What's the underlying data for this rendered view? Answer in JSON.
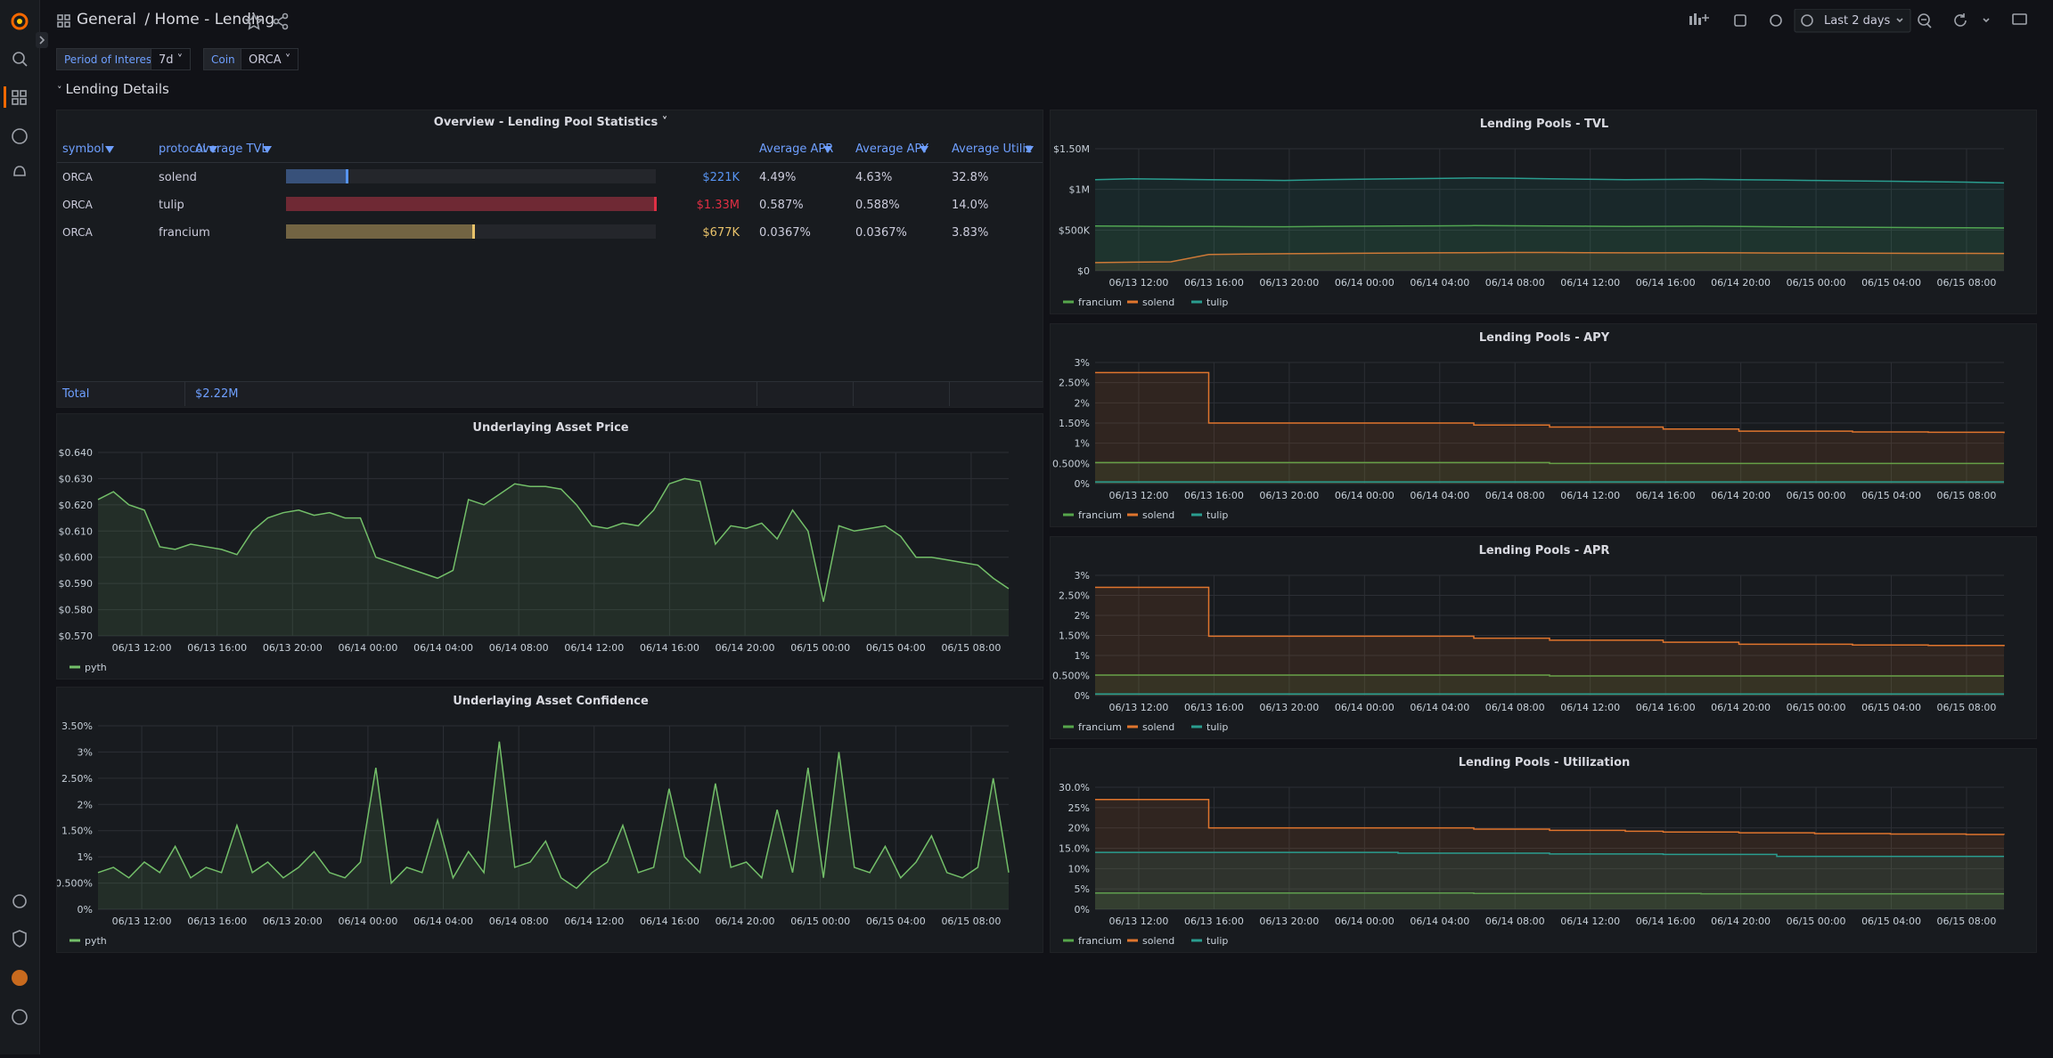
{
  "nav": {
    "folder": "General",
    "separator": "/",
    "dashboard": "Home - Lending",
    "time_range": "Last 2 days"
  },
  "variables": [
    {
      "label": "Period of Interest",
      "value": "7d"
    },
    {
      "label": "Coin",
      "value": "ORCA"
    }
  ],
  "row_title": "Lending Details",
  "table": {
    "title": "Overview - Lending Pool Statistics",
    "columns": [
      "symbol",
      "protocol",
      "Average TVL",
      "Average APR",
      "Average APY",
      "Average Utiliz"
    ],
    "rows": [
      {
        "symbol": "ORCA",
        "protocol": "solend",
        "tvl": 221000,
        "tvl_label": "$221K",
        "apr": "4.49%",
        "apy": "4.63%",
        "utilization": "32.8%",
        "color": "#5794f2"
      },
      {
        "symbol": "ORCA",
        "protocol": "tulip",
        "tvl": 1330000,
        "tvl_label": "$1.33M",
        "apr": "0.587%",
        "apy": "0.588%",
        "utilization": "14.0%",
        "color": "#e02f44"
      },
      {
        "symbol": "ORCA",
        "protocol": "francium",
        "tvl": 677000,
        "tvl_label": "$677K",
        "apr": "0.0367%",
        "apy": "0.0367%",
        "utilization": "3.83%",
        "color": "#e8c26a"
      }
    ],
    "footer": {
      "label": "Total",
      "tvl_total": "$2.22M"
    }
  },
  "chart_data": [
    {
      "type": "line",
      "title": "Underlaying Asset Price",
      "interpolation": "linear",
      "fill_opacity": 0.12,
      "legend": "bottom",
      "grid": true,
      "xticks": [
        "06/13 12:00",
        "06/13 16:00",
        "06/13 20:00",
        "06/14 00:00",
        "06/14 04:00",
        "06/14 08:00",
        "06/14 12:00",
        "06/14 16:00",
        "06/14 20:00",
        "06/15 00:00",
        "06/15 04:00",
        "06/15 08:00"
      ],
      "ylim": [
        0.57,
        0.64
      ],
      "yticks": [
        {
          "value": 0.57,
          "label": "$0.570"
        },
        {
          "value": 0.58,
          "label": "$0.580"
        },
        {
          "value": 0.59,
          "label": "$0.590"
        },
        {
          "value": 0.6,
          "label": "$0.600"
        },
        {
          "value": 0.61,
          "label": "$0.610"
        },
        {
          "value": 0.62,
          "label": "$0.620"
        },
        {
          "value": 0.63,
          "label": "$0.630"
        },
        {
          "value": 0.64,
          "label": "$0.640"
        }
      ],
      "series": [
        {
          "name": "pyth",
          "color": "#73bf69",
          "values": [
            0.622,
            0.625,
            0.62,
            0.618,
            0.604,
            0.603,
            0.605,
            0.604,
            0.603,
            0.601,
            0.61,
            0.615,
            0.617,
            0.618,
            0.616,
            0.617,
            0.615,
            0.615,
            0.6,
            0.598,
            0.596,
            0.594,
            0.592,
            0.595,
            0.622,
            0.62,
            0.624,
            0.628,
            0.627,
            0.627,
            0.626,
            0.62,
            0.612,
            0.611,
            0.613,
            0.612,
            0.618,
            0.628,
            0.63,
            0.629,
            0.605,
            0.612,
            0.611,
            0.613,
            0.607,
            0.618,
            0.61,
            0.583,
            0.612,
            0.61,
            0.611,
            0.612,
            0.608,
            0.6,
            0.6,
            0.599,
            0.598,
            0.597,
            0.592,
            0.588
          ]
        }
      ]
    },
    {
      "type": "line",
      "title": "Underlaying Asset Confidence",
      "interpolation": "linear",
      "fill_opacity": 0.12,
      "legend": "bottom",
      "grid": true,
      "xticks": [
        "06/13 12:00",
        "06/13 16:00",
        "06/13 20:00",
        "06/14 00:00",
        "06/14 04:00",
        "06/14 08:00",
        "06/14 12:00",
        "06/14 16:00",
        "06/14 20:00",
        "06/15 00:00",
        "06/15 04:00",
        "06/15 08:00"
      ],
      "ylim": [
        0,
        3.5
      ],
      "yticks": [
        {
          "value": 0,
          "label": "0%"
        },
        {
          "value": 0.5,
          "label": "0.500%"
        },
        {
          "value": 1,
          "label": "1%"
        },
        {
          "value": 1.5,
          "label": "1.50%"
        },
        {
          "value": 2,
          "label": "2%"
        },
        {
          "value": 2.5,
          "label": "2.50%"
        },
        {
          "value": 3,
          "label": "3%"
        },
        {
          "value": 3.5,
          "label": "3.50%"
        }
      ],
      "series": [
        {
          "name": "pyth",
          "color": "#73bf69",
          "values": [
            0.7,
            0.8,
            0.6,
            0.9,
            0.7,
            1.2,
            0.6,
            0.8,
            0.7,
            1.6,
            0.7,
            0.9,
            0.6,
            0.8,
            1.1,
            0.7,
            0.6,
            0.9,
            2.7,
            0.5,
            0.8,
            0.7,
            1.7,
            0.6,
            1.1,
            0.7,
            3.2,
            0.8,
            0.9,
            1.3,
            0.6,
            0.4,
            0.7,
            0.9,
            1.6,
            0.7,
            0.8,
            2.3,
            1.0,
            0.7,
            2.4,
            0.8,
            0.9,
            0.6,
            1.9,
            0.7,
            2.7,
            0.6,
            3.0,
            0.8,
            0.7,
            1.2,
            0.6,
            0.9,
            1.4,
            0.7,
            0.6,
            0.8,
            2.5,
            0.7
          ]
        }
      ]
    },
    {
      "type": "line",
      "title": "Lending Pools - TVL",
      "interpolation": "linear",
      "fill_opacity": 0.1,
      "legend": "bottom",
      "grid": true,
      "xticks": [
        "06/13 12:00",
        "06/13 16:00",
        "06/13 20:00",
        "06/14 00:00",
        "06/14 04:00",
        "06/14 08:00",
        "06/14 12:00",
        "06/14 16:00",
        "06/14 20:00",
        "06/15 00:00",
        "06/15 04:00",
        "06/15 08:00"
      ],
      "ylim": [
        0,
        1500000
      ],
      "yticks": [
        {
          "value": 0,
          "label": "$0"
        },
        {
          "value": 500000,
          "label": "$500K"
        },
        {
          "value": 1000000,
          "label": "$1M"
        },
        {
          "value": 1500000,
          "label": "$1.50M"
        }
      ],
      "series": [
        {
          "name": "francium",
          "color": "#56a64b",
          "values": [
            550000,
            548000,
            545000,
            545000,
            542000,
            540000,
            545000,
            548000,
            550000,
            552000,
            555000,
            553000,
            550000,
            548000,
            545000,
            546000,
            548000,
            545000,
            540000,
            538000,
            535000,
            532000,
            530000,
            528000,
            525000
          ]
        },
        {
          "name": "solend",
          "color": "#e0752d",
          "values": [
            100000,
            105000,
            110000,
            200000,
            205000,
            210000,
            212000,
            215000,
            218000,
            220000,
            222000,
            225000,
            224000,
            222000,
            220000,
            221000,
            222000,
            220000,
            218000,
            217000,
            216000,
            215000,
            214000,
            213000,
            212000
          ]
        },
        {
          "name": "tulip",
          "color": "#2a9d8f",
          "values": [
            1120000,
            1130000,
            1125000,
            1120000,
            1115000,
            1110000,
            1120000,
            1125000,
            1130000,
            1135000,
            1140000,
            1138000,
            1130000,
            1125000,
            1120000,
            1122000,
            1125000,
            1120000,
            1115000,
            1110000,
            1105000,
            1100000,
            1095000,
            1090000,
            1080000
          ]
        }
      ]
    },
    {
      "type": "line",
      "title": "Lending Pools - APY",
      "interpolation": "stepAfter",
      "fill_opacity": 0.12,
      "legend": "bottom",
      "grid": true,
      "xticks": [
        "06/13 12:00",
        "06/13 16:00",
        "06/13 20:00",
        "06/14 00:00",
        "06/14 04:00",
        "06/14 08:00",
        "06/14 12:00",
        "06/14 16:00",
        "06/14 20:00",
        "06/15 00:00",
        "06/15 04:00",
        "06/15 08:00"
      ],
      "ylim": [
        0,
        3
      ],
      "yticks": [
        {
          "value": 0,
          "label": "0%"
        },
        {
          "value": 0.5,
          "label": "0.500%"
        },
        {
          "value": 1,
          "label": "1%"
        },
        {
          "value": 1.5,
          "label": "1.50%"
        },
        {
          "value": 2,
          "label": "2%"
        },
        {
          "value": 2.5,
          "label": "2.50%"
        },
        {
          "value": 3,
          "label": "3%"
        }
      ],
      "series": [
        {
          "name": "francium",
          "color": "#56a64b",
          "values": [
            0.52,
            0.52,
            0.52,
            0.52,
            0.52,
            0.52,
            0.52,
            0.52,
            0.52,
            0.52,
            0.52,
            0.52,
            0.5,
            0.5,
            0.5,
            0.5,
            0.5,
            0.5,
            0.5,
            0.5,
            0.5,
            0.5,
            0.5,
            0.5,
            0.5
          ]
        },
        {
          "name": "solend",
          "color": "#e0752d",
          "values": [
            2.75,
            2.75,
            2.75,
            1.5,
            1.5,
            1.5,
            1.5,
            1.5,
            1.5,
            1.5,
            1.45,
            1.45,
            1.4,
            1.4,
            1.4,
            1.35,
            1.35,
            1.3,
            1.3,
            1.3,
            1.28,
            1.28,
            1.27,
            1.27,
            1.25
          ]
        },
        {
          "name": "tulip",
          "color": "#2a9d8f",
          "values": [
            0.04,
            0.04,
            0.04,
            0.04,
            0.04,
            0.04,
            0.04,
            0.04,
            0.04,
            0.04,
            0.04,
            0.04,
            0.04,
            0.04,
            0.04,
            0.04,
            0.04,
            0.04,
            0.04,
            0.04,
            0.04,
            0.04,
            0.04,
            0.04,
            0.04
          ]
        }
      ]
    },
    {
      "type": "line",
      "title": "Lending Pools - APR",
      "interpolation": "stepAfter",
      "fill_opacity": 0.12,
      "legend": "bottom",
      "grid": true,
      "xticks": [
        "06/13 12:00",
        "06/13 16:00",
        "06/13 20:00",
        "06/14 00:00",
        "06/14 04:00",
        "06/14 08:00",
        "06/14 12:00",
        "06/14 16:00",
        "06/14 20:00",
        "06/15 00:00",
        "06/15 04:00",
        "06/15 08:00"
      ],
      "ylim": [
        0,
        3
      ],
      "yticks": [
        {
          "value": 0,
          "label": "0%"
        },
        {
          "value": 0.5,
          "label": "0.500%"
        },
        {
          "value": 1,
          "label": "1%"
        },
        {
          "value": 1.5,
          "label": "1.50%"
        },
        {
          "value": 2,
          "label": "2%"
        },
        {
          "value": 2.5,
          "label": "2.50%"
        },
        {
          "value": 3,
          "label": "3%"
        }
      ],
      "series": [
        {
          "name": "francium",
          "color": "#56a64b",
          "values": [
            0.51,
            0.51,
            0.51,
            0.51,
            0.51,
            0.51,
            0.51,
            0.51,
            0.51,
            0.51,
            0.51,
            0.51,
            0.49,
            0.49,
            0.49,
            0.49,
            0.49,
            0.49,
            0.49,
            0.49,
            0.49,
            0.49,
            0.49,
            0.49,
            0.49
          ]
        },
        {
          "name": "solend",
          "color": "#e0752d",
          "values": [
            2.7,
            2.7,
            2.7,
            1.48,
            1.48,
            1.48,
            1.48,
            1.48,
            1.48,
            1.48,
            1.43,
            1.43,
            1.38,
            1.38,
            1.38,
            1.33,
            1.33,
            1.28,
            1.28,
            1.28,
            1.26,
            1.26,
            1.25,
            1.25,
            1.23
          ]
        },
        {
          "name": "tulip",
          "color": "#2a9d8f",
          "values": [
            0.04,
            0.04,
            0.04,
            0.04,
            0.04,
            0.04,
            0.04,
            0.04,
            0.04,
            0.04,
            0.04,
            0.04,
            0.04,
            0.04,
            0.04,
            0.04,
            0.04,
            0.04,
            0.04,
            0.04,
            0.04,
            0.04,
            0.04,
            0.04,
            0.04
          ]
        }
      ]
    },
    {
      "type": "line",
      "title": "Lending Pools - Utilization",
      "interpolation": "stepAfter",
      "fill_opacity": 0.12,
      "legend": "bottom",
      "grid": true,
      "xticks": [
        "06/13 12:00",
        "06/13 16:00",
        "06/13 20:00",
        "06/14 00:00",
        "06/14 04:00",
        "06/14 08:00",
        "06/14 12:00",
        "06/14 16:00",
        "06/14 20:00",
        "06/15 00:00",
        "06/15 04:00",
        "06/15 08:00"
      ],
      "ylim": [
        0,
        30
      ],
      "yticks": [
        {
          "value": 0,
          "label": "0%"
        },
        {
          "value": 5,
          "label": "5%"
        },
        {
          "value": 10,
          "label": "10%"
        },
        {
          "value": 15,
          "label": "15.0%"
        },
        {
          "value": 20,
          "label": "20%"
        },
        {
          "value": 25,
          "label": "25%"
        },
        {
          "value": 30,
          "label": "30.0%"
        }
      ],
      "series": [
        {
          "name": "francium",
          "color": "#56a64b",
          "values": [
            4,
            4,
            4,
            4,
            4,
            4,
            4,
            4,
            4,
            4,
            3.9,
            3.9,
            3.9,
            3.9,
            3.9,
            3.9,
            3.8,
            3.8,
            3.8,
            3.8,
            3.8,
            3.8,
            3.8,
            3.8,
            3.8
          ]
        },
        {
          "name": "solend",
          "color": "#e0752d",
          "values": [
            27,
            27,
            27,
            20,
            20,
            20,
            20,
            20,
            20,
            20,
            19.7,
            19.7,
            19.4,
            19.4,
            19.2,
            19,
            19,
            18.8,
            18.8,
            18.6,
            18.6,
            18.5,
            18.5,
            18.4,
            18.3
          ]
        },
        {
          "name": "tulip",
          "color": "#2a9d8f",
          "values": [
            14,
            14,
            14,
            14,
            14,
            14,
            14,
            14,
            13.8,
            13.8,
            13.8,
            13.8,
            13.6,
            13.6,
            13.6,
            13.5,
            13.5,
            13.5,
            13,
            13,
            13,
            13,
            13,
            13,
            13
          ]
        }
      ]
    }
  ]
}
